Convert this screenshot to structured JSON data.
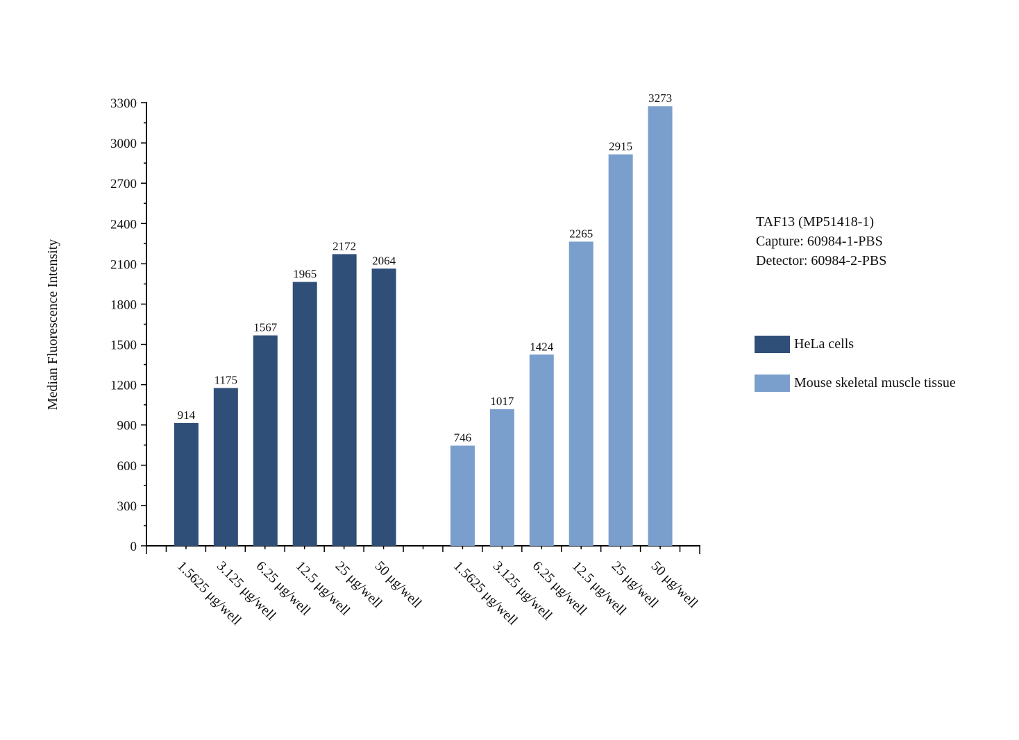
{
  "chart_data": {
    "type": "bar",
    "ylabel": "Median Fluorescence Intensity",
    "xlabel": "",
    "ylim": [
      0,
      3300
    ],
    "yticks": [
      0,
      300,
      600,
      900,
      1200,
      1500,
      1800,
      2100,
      2400,
      2700,
      3000,
      3300
    ],
    "yticks_labels": [
      "0",
      "300",
      "600",
      "900",
      "1200",
      "1500",
      "1800",
      "2100",
      "2400",
      "2700",
      "3000",
      "3300"
    ],
    "groups": [
      {
        "name": "HeLa cells",
        "color": "#2f4f78",
        "categories": [
          "1.5625 μg/well",
          "3.125 μg/well",
          "6.25 μg/well",
          "12.5 μg/well",
          "25 μg/well",
          "50 μg/well"
        ],
        "values": [
          914,
          1175,
          1567,
          1965,
          2172,
          2064
        ],
        "value_labels": [
          "914",
          "1175",
          "1567",
          "1965",
          "2172",
          "2064"
        ]
      },
      {
        "name": "Mouse skeletal muscle tissue",
        "color": "#7b9fcd",
        "categories": [
          "1.5625 μg/well",
          "3.125 μg/well",
          "6.25 μg/well",
          "12.5 μg/well",
          "25 μg/well",
          "50 μg/well"
        ],
        "values": [
          746,
          1017,
          1424,
          2265,
          2915,
          3273
        ],
        "value_labels": [
          "746",
          "1017",
          "1424",
          "2265",
          "2915",
          "3273"
        ]
      }
    ],
    "annotation": [
      "TAF13 (MP51418-1)",
      "Capture: 60984-1-PBS",
      "Detector: 60984-2-PBS"
    ],
    "legend": {
      "position": "right",
      "items": [
        {
          "label": "HeLa cells",
          "color": "#2f4f78"
        },
        {
          "label": "Mouse skeletal muscle tissue",
          "color": "#7b9fcd"
        }
      ]
    }
  }
}
